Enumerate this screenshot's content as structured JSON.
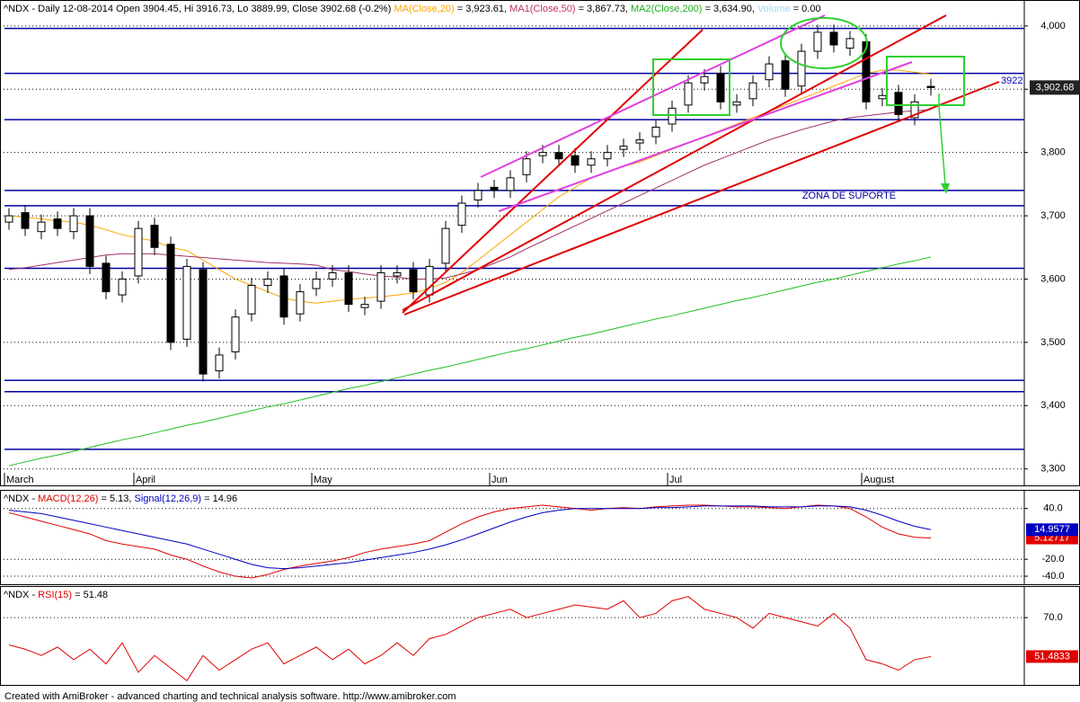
{
  "chart_data": [
    {
      "type": "candlestick",
      "title_parts": [
        {
          "text": "^NDX - Daily 12-08-2014 Open 3904.45, Hi 3916.73, Lo 3889.99, Close 3902.68 (-0.2%) ",
          "color": "#000000"
        },
        {
          "text": "MA(Close,20)",
          "color": "#ffa500"
        },
        {
          "text": " = 3,923.61, ",
          "color": "#000000"
        },
        {
          "text": "MA1(Close,50)",
          "color": "#c0306a"
        },
        {
          "text": " = 3,867.73, ",
          "color": "#000000"
        },
        {
          "text": "MA2(Close,200)",
          "color": "#20b020"
        },
        {
          "text": " = 3,634.90, ",
          "color": "#000000"
        },
        {
          "text": "Volume",
          "color": "#a8d8f0"
        },
        {
          "text": " = 0.00",
          "color": "#000000"
        }
      ],
      "categories": [
        "March",
        null,
        null,
        null,
        null,
        null,
        null,
        null,
        "April",
        null,
        null,
        null,
        null,
        null,
        null,
        null,
        null,
        null,
        null,
        "May",
        null,
        null,
        null,
        null,
        null,
        null,
        null,
        null,
        null,
        null,
        "Jun",
        null,
        null,
        null,
        null,
        null,
        null,
        null,
        null,
        null,
        null,
        "Jul",
        null,
        null,
        null,
        null,
        null,
        null,
        null,
        null,
        null,
        null,
        null,
        "August",
        null,
        null,
        null,
        null
      ],
      "open": [
        3690,
        3705,
        3675,
        3695,
        3675,
        3700,
        3625,
        3575,
        3605,
        3685,
        3655,
        3505,
        3615,
        3455,
        3485,
        3545,
        3590,
        3605,
        3545,
        3585,
        3600,
        3610,
        3555,
        3565,
        3605,
        3615,
        3575,
        3625,
        3685,
        3725,
        3745,
        3740,
        3765,
        3795,
        3800,
        3795,
        3780,
        3790,
        3805,
        3815,
        3825,
        3845,
        3875,
        3910,
        3925,
        3875,
        3885,
        3915,
        3945,
        3905,
        3960,
        3990,
        3965,
        3975,
        3885,
        3895,
        3855,
        3904.45
      ],
      "high": [
        3712,
        3717,
        3702,
        3707,
        3712,
        3712,
        3637,
        3612,
        3692,
        3697,
        3667,
        3632,
        3627,
        3492,
        3552,
        3602,
        3612,
        3617,
        3592,
        3612,
        3622,
        3622,
        3572,
        3622,
        3622,
        3627,
        3632,
        3692,
        3732,
        3752,
        3757,
        3772,
        3802,
        3812,
        3812,
        3807,
        3802,
        3812,
        3822,
        3832,
        3852,
        3882,
        3922,
        3932,
        3937,
        3892,
        3922,
        3952,
        3957,
        3972,
        4002,
        4002,
        3992,
        3987,
        3902,
        3907,
        3892,
        3916.73
      ],
      "low": [
        3678,
        3668,
        3663,
        3668,
        3663,
        3608,
        3568,
        3563,
        3593,
        3638,
        3488,
        3493,
        3438,
        3443,
        3473,
        3533,
        3578,
        3528,
        3533,
        3573,
        3588,
        3548,
        3543,
        3553,
        3593,
        3568,
        3563,
        3613,
        3673,
        3713,
        3728,
        3728,
        3753,
        3783,
        3778,
        3768,
        3768,
        3778,
        3793,
        3803,
        3813,
        3833,
        3863,
        3898,
        3868,
        3863,
        3873,
        3903,
        3888,
        3893,
        3948,
        3958,
        3953,
        3868,
        3873,
        3848,
        3843,
        3889.99
      ],
      "close": [
        3700,
        3680,
        3690,
        3680,
        3700,
        3620,
        3580,
        3600,
        3680,
        3650,
        3500,
        3620,
        3450,
        3480,
        3540,
        3590,
        3600,
        3540,
        3580,
        3600,
        3610,
        3560,
        3560,
        3610,
        3610,
        3580,
        3620,
        3680,
        3720,
        3740,
        3740,
        3760,
        3790,
        3800,
        3790,
        3780,
        3790,
        3800,
        3810,
        3820,
        3840,
        3870,
        3910,
        3920,
        3880,
        3880,
        3910,
        3940,
        3900,
        3960,
        3990,
        3970,
        3980,
        3880,
        3890,
        3860,
        3880,
        3902.68
      ],
      "last_label": "3,902.68",
      "overlays": [
        {
          "color": "#ffa500",
          "values": [
            3700,
            3698,
            3695,
            3692,
            3690,
            3685,
            3678,
            3670,
            3665,
            3660,
            3650,
            3645,
            3630,
            3615,
            3600,
            3590,
            3580,
            3570,
            3565,
            3562,
            3565,
            3568,
            3570,
            3572,
            3575,
            3578,
            3585,
            3595,
            3610,
            3630,
            3650,
            3670,
            3690,
            3710,
            3730,
            3745,
            3760,
            3770,
            3778,
            3785,
            3795,
            3805,
            3815,
            3825,
            3835,
            3845,
            3855,
            3865,
            3875,
            3885,
            3895,
            3905,
            3915,
            3925,
            3930,
            3930,
            3927,
            3923.61
          ]
        },
        {
          "color": "#a0306a",
          "values": [
            3615,
            3618,
            3622,
            3626,
            3630,
            3634,
            3638,
            3640,
            3640,
            3640,
            3638,
            3636,
            3634,
            3632,
            3630,
            3628,
            3626,
            3625,
            3624,
            3622,
            3615,
            3612,
            3608,
            3605,
            3603,
            3600,
            3600,
            3602,
            3608,
            3615,
            3625,
            3635,
            3648,
            3660,
            3672,
            3684,
            3696,
            3708,
            3720,
            3732,
            3744,
            3756,
            3768,
            3780,
            3790,
            3800,
            3810,
            3820,
            3828,
            3836,
            3843,
            3850,
            3855,
            3858,
            3861,
            3864,
            3866,
            3867.73
          ]
        },
        {
          "color": "#20c020",
          "values": [
            3305,
            3311,
            3317,
            3322,
            3328,
            3334,
            3340,
            3346,
            3351,
            3357,
            3363,
            3369,
            3374,
            3380,
            3386,
            3392,
            3398,
            3403,
            3409,
            3415,
            3421,
            3427,
            3432,
            3438,
            3444,
            3450,
            3456,
            3461,
            3467,
            3473,
            3479,
            3485,
            3490,
            3496,
            3502,
            3508,
            3513,
            3519,
            3525,
            3531,
            3537,
            3542,
            3548,
            3554,
            3560,
            3566,
            3571,
            3577,
            3583,
            3589,
            3595,
            3600,
            3606,
            3612,
            3618,
            3624,
            3629,
            3634.9
          ]
        }
      ],
      "hlines": {
        "color": "#0000a0",
        "values": [
          3996,
          3925,
          3852,
          3740,
          3716,
          3617,
          3440,
          3422,
          3331
        ]
      },
      "annotations": [
        "ZONA DE SUPORTE",
        "3922"
      ],
      "ylim": [
        3274,
        4041
      ],
      "yticks": [
        {
          "value": 3300,
          "label": "3,300"
        },
        {
          "value": 3400,
          "label": "3,400"
        },
        {
          "value": 3500,
          "label": "3,500"
        },
        {
          "value": 3600,
          "label": "3,600"
        },
        {
          "value": 3700,
          "label": "3,700"
        },
        {
          "value": 3800,
          "label": "3,800"
        },
        {
          "value": 3900,
          "label": "3,900"
        },
        {
          "value": 4000,
          "label": "4,000"
        }
      ],
      "grid": true
    },
    {
      "type": "line",
      "title_parts": [
        {
          "text": "^NDX - ",
          "color": "#000000"
        },
        {
          "text": "MACD(12,26)",
          "color": "#e00000"
        },
        {
          "text": " = 5.13, ",
          "color": "#000000"
        },
        {
          "text": "Signal(12,26,9)",
          "color": "#0000c0"
        },
        {
          "text": " = 14.96",
          "color": "#000000"
        }
      ],
      "series": [
        {
          "name": "MACD",
          "color": "#e00000",
          "last_label": "5.12717",
          "values": [
            35,
            30,
            25,
            20,
            15,
            10,
            2,
            -2,
            -5,
            -8,
            -15,
            -20,
            -28,
            -35,
            -40,
            -42,
            -38,
            -32,
            -28,
            -25,
            -22,
            -18,
            -12,
            -8,
            -5,
            -2,
            2,
            12,
            22,
            30,
            36,
            40,
            42,
            44,
            42,
            40,
            38,
            40,
            41,
            40,
            42,
            43,
            44,
            44,
            43,
            42,
            42,
            41,
            40,
            42,
            44,
            43,
            40,
            30,
            18,
            10,
            6,
            5.12717
          ]
        },
        {
          "name": "Signal",
          "color": "#0000c0",
          "last_label": "14.9577",
          "values": [
            38,
            36,
            34,
            30,
            26,
            22,
            18,
            14,
            10,
            6,
            2,
            -2,
            -8,
            -14,
            -20,
            -26,
            -30,
            -31,
            -30,
            -28,
            -26,
            -24,
            -21,
            -18,
            -15,
            -12,
            -8,
            -3,
            3,
            10,
            17,
            24,
            30,
            35,
            38,
            40,
            40,
            40,
            40,
            40,
            41,
            41,
            42,
            43,
            43,
            43,
            43,
            42,
            42,
            42,
            43,
            43,
            42,
            38,
            32,
            25,
            19,
            14.9577
          ]
        }
      ],
      "ylim": [
        -49.5,
        62
      ],
      "yticks": [
        {
          "value": 40,
          "label": "40.0"
        },
        {
          "value": -20,
          "label": "-20.0"
        },
        {
          "value": -40,
          "label": "-40.0"
        }
      ],
      "grid": true
    },
    {
      "type": "line",
      "title_parts": [
        {
          "text": "^NDX - ",
          "color": "#000000"
        },
        {
          "text": "RSI(15)",
          "color": "#e00000"
        },
        {
          "text": " = 51.48",
          "color": "#000000"
        }
      ],
      "series": [
        {
          "name": "RSI",
          "color": "#e00000",
          "last_label": "51.4833",
          "values": [
            57,
            55,
            52,
            56,
            50,
            55,
            48,
            58,
            44,
            52,
            46,
            40,
            52,
            45,
            50,
            55,
            58,
            48,
            52,
            56,
            50,
            55,
            48,
            52,
            58,
            52,
            60,
            62,
            66,
            70,
            72,
            74,
            70,
            72,
            74,
            76,
            75,
            74,
            78,
            70,
            72,
            78,
            80,
            74,
            72,
            70,
            65,
            72,
            70,
            68,
            66,
            72,
            65,
            50,
            48,
            45,
            50,
            51.4833
          ]
        }
      ],
      "ylim": [
        38,
        85
      ],
      "yticks": [
        {
          "value": 70,
          "label": "70.0"
        }
      ],
      "grid": true
    }
  ],
  "footer": "Created with AmiBroker - advanced charting and technical analysis software. http://www.amibroker.com"
}
